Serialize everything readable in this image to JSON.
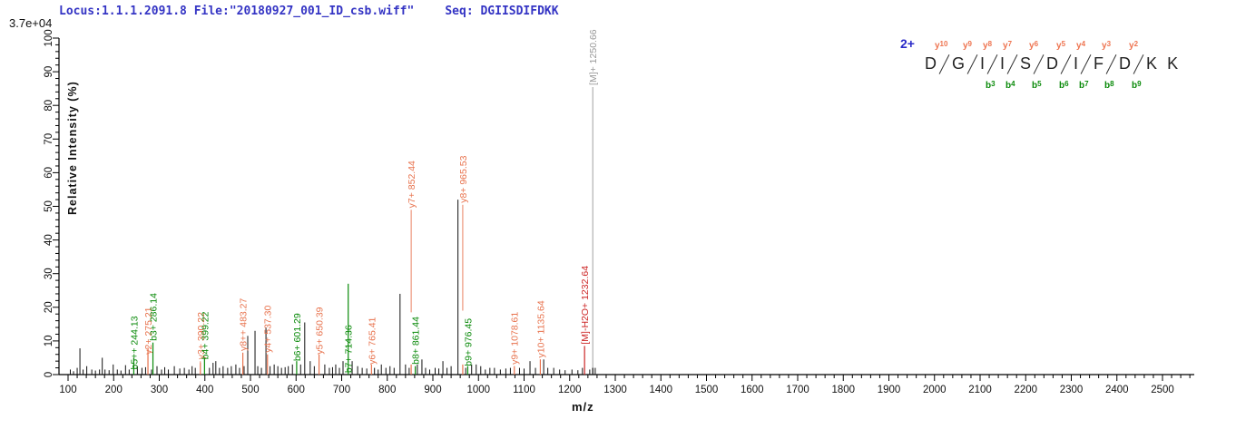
{
  "header": {
    "locus_file": "Locus:1.1.1.2091.8 File:\"20180927_001_ID_csb.wiff\"",
    "seq": "Seq: DGIISDIFDKK",
    "intensity_scale": "3.7e+04"
  },
  "peptide_panel": {
    "charge": "2+",
    "residues": [
      "D",
      "G",
      "I",
      "I",
      "S",
      "D",
      "I",
      "F",
      "D",
      "K",
      "K"
    ],
    "y_ions": [
      {
        "series": "y",
        "num": "10",
        "after": 1
      },
      {
        "series": "y",
        "num": "9",
        "after": 2
      },
      {
        "series": "y",
        "num": "8",
        "after": 3
      },
      {
        "series": "y",
        "num": "7",
        "after": 4
      },
      {
        "series": "y",
        "num": "6",
        "after": 5
      },
      {
        "series": "y",
        "num": "5",
        "after": 6
      },
      {
        "series": "y",
        "num": "4",
        "after": 7
      },
      {
        "series": "y",
        "num": "3",
        "after": 8
      },
      {
        "series": "y",
        "num": "2",
        "after": 9
      }
    ],
    "b_ions": [
      {
        "series": "b",
        "num": "3",
        "after": 3
      },
      {
        "series": "b",
        "num": "4",
        "after": 4
      },
      {
        "series": "b",
        "num": "5",
        "after": 5
      },
      {
        "series": "b",
        "num": "6",
        "after": 6
      },
      {
        "series": "b",
        "num": "7",
        "after": 7
      },
      {
        "series": "b",
        "num": "8",
        "after": 8
      },
      {
        "series": "b",
        "num": "9",
        "after": 9
      }
    ]
  },
  "chart_data": {
    "type": "bar",
    "subtype": "ms2-spectrum",
    "xlabel": "m/z",
    "ylabel": "Relative  Intensity (%)",
    "intensity_scale": "3.7e+04",
    "xlim": [
      100,
      2560
    ],
    "ylim": [
      0,
      100
    ],
    "x_tick_major": 100,
    "x_tick_minor": 20,
    "x_label_first": 100,
    "x_label_last": 2500,
    "y_tick_major": 10,
    "y_tick_minor": 2,
    "grid": false,
    "annotated_peaks": [
      {
        "mz": 244.13,
        "pct": 5,
        "label": "b5++ 244.13",
        "series": "b",
        "lab": 1.5
      },
      {
        "mz": 275.21,
        "pct": 8,
        "label": "y2+ 275.21",
        "series": "y",
        "lab": 6
      },
      {
        "mz": 286.14,
        "pct": 9.5,
        "label": "b3+ 286.14",
        "series": "b",
        "lab": 10
      },
      {
        "mz": 390.22,
        "pct": 3.5,
        "label": "y3+ 390.22",
        "series": "y",
        "lab": 4.5
      },
      {
        "mz": 399.22,
        "pct": 5,
        "label": "b4+ 399.22",
        "series": "b",
        "lab": 4.5
      },
      {
        "mz": 483.27,
        "pct": 6.5,
        "label": "y8++ 483.27",
        "series": "y",
        "lab": 7
      },
      {
        "mz": 537.3,
        "pct": 6,
        "label": "y4+ 537.30",
        "series": "y",
        "lab": 6.5
      },
      {
        "mz": 601.29,
        "pct": 4,
        "label": "b6+ 601.29",
        "series": "b",
        "lab": 4
      },
      {
        "mz": 650.39,
        "pct": 6,
        "label": "y5+ 650.39",
        "series": "y",
        "lab": 6
      },
      {
        "mz": 714.36,
        "pct": 27,
        "label": "b7+ 714.36",
        "series": "b",
        "lab": 0.5
      },
      {
        "mz": 765.41,
        "pct": 3,
        "label": "y6+ 765.41",
        "series": "y",
        "lab": 3
      },
      {
        "mz": 852.44,
        "pct": 3,
        "label": "y7+ 852.44",
        "series": "y",
        "lab": 49.5,
        "leader_end": 18.5
      },
      {
        "mz": 861.44,
        "pct": 2.5,
        "label": "b8+ 861.44",
        "series": "b",
        "lab": 3
      },
      {
        "mz": 965.53,
        "pct": 3,
        "label": "y8+ 965.53",
        "series": "y",
        "lab": 51,
        "leader_end": 19
      },
      {
        "mz": 976.45,
        "pct": 2.5,
        "label": "b9+ 976.45",
        "series": "b",
        "lab": 2.5
      },
      {
        "mz": 1078.61,
        "pct": 2.5,
        "label": "y9+ 1078.61",
        "series": "y",
        "lab": 3
      },
      {
        "mz": 1135.64,
        "pct": 4.5,
        "label": "y10+ 1135.64",
        "series": "y",
        "lab": 5
      },
      {
        "mz": 1232.64,
        "pct": 8.5,
        "label": "[M]-H2O+ 1232.64",
        "series": "loss",
        "lab": 9
      },
      {
        "mz": 1250.66,
        "pct": 2,
        "label": "[M]+ 1250.66",
        "series": "precursor",
        "lab": 86,
        "marker": true
      }
    ],
    "noise_peaks": [
      [
        105,
        1.5
      ],
      [
        112,
        1
      ],
      [
        120,
        2
      ],
      [
        126,
        7.8
      ],
      [
        133,
        1.5
      ],
      [
        141,
        2.5
      ],
      [
        152,
        1.5
      ],
      [
        160,
        1.2
      ],
      [
        169,
        1.5
      ],
      [
        175,
        5
      ],
      [
        181,
        1.5
      ],
      [
        190,
        1.3
      ],
      [
        199,
        3
      ],
      [
        208,
        1.5
      ],
      [
        216,
        1.2
      ],
      [
        226,
        2.8
      ],
      [
        234,
        1.5
      ],
      [
        252,
        2.5
      ],
      [
        262,
        2
      ],
      [
        270,
        2.2
      ],
      [
        283,
        1.5
      ],
      [
        295,
        2.5
      ],
      [
        305,
        1.5
      ],
      [
        312,
        2.2
      ],
      [
        320,
        1.5
      ],
      [
        333,
        2.5
      ],
      [
        345,
        1.8
      ],
      [
        355,
        2
      ],
      [
        365,
        1.5
      ],
      [
        372,
        2.5
      ],
      [
        379,
        2
      ],
      [
        410,
        2
      ],
      [
        418,
        3.5
      ],
      [
        424,
        4
      ],
      [
        432,
        2
      ],
      [
        440,
        2.5
      ],
      [
        450,
        2
      ],
      [
        458,
        2.5
      ],
      [
        468,
        3
      ],
      [
        476,
        2
      ],
      [
        486,
        2.5
      ],
      [
        494,
        11.5
      ],
      [
        510,
        13
      ],
      [
        516,
        2.5
      ],
      [
        524,
        2
      ],
      [
        534,
        14
      ],
      [
        543,
        2.5
      ],
      [
        552,
        3
      ],
      [
        560,
        2.5
      ],
      [
        568,
        2
      ],
      [
        576,
        2.2
      ],
      [
        583,
        2.5
      ],
      [
        592,
        3
      ],
      [
        610,
        3
      ],
      [
        619,
        15.5
      ],
      [
        631,
        4
      ],
      [
        640,
        2.5
      ],
      [
        663,
        3
      ],
      [
        673,
        2
      ],
      [
        680,
        2.2
      ],
      [
        687,
        3
      ],
      [
        695,
        2
      ],
      [
        703,
        4
      ],
      [
        723,
        4
      ],
      [
        735,
        2.5
      ],
      [
        745,
        2
      ],
      [
        755,
        1.8
      ],
      [
        772,
        2
      ],
      [
        780,
        1.5
      ],
      [
        787,
        3
      ],
      [
        797,
        2
      ],
      [
        806,
        2.5
      ],
      [
        815,
        2
      ],
      [
        828,
        24
      ],
      [
        840,
        3
      ],
      [
        848,
        2
      ],
      [
        866,
        3
      ],
      [
        876,
        4.5
      ],
      [
        884,
        2
      ],
      [
        893,
        1.5
      ],
      [
        905,
        2
      ],
      [
        913,
        1.8
      ],
      [
        922,
        4
      ],
      [
        931,
        2
      ],
      [
        940,
        2.5
      ],
      [
        955,
        52
      ],
      [
        972,
        2
      ],
      [
        985,
        3
      ],
      [
        995,
        3
      ],
      [
        1005,
        2.5
      ],
      [
        1015,
        1.5
      ],
      [
        1025,
        2
      ],
      [
        1035,
        2
      ],
      [
        1048,
        1.5
      ],
      [
        1060,
        1.8
      ],
      [
        1070,
        2
      ],
      [
        1090,
        2
      ],
      [
        1100,
        1.8
      ],
      [
        1113,
        4
      ],
      [
        1125,
        2
      ],
      [
        1143,
        4.5
      ],
      [
        1152,
        2
      ],
      [
        1165,
        2
      ],
      [
        1178,
        1.5
      ],
      [
        1190,
        1.3
      ],
      [
        1205,
        1.5
      ],
      [
        1218,
        1.3
      ],
      [
        1228,
        2
      ],
      [
        1244,
        1.5
      ],
      [
        1256,
        2
      ]
    ]
  },
  "colors": {
    "b_ion": "#0a8a0a",
    "y_ion": "#e8734e",
    "loss": "#cc2525",
    "precursor": "#9a9a9a",
    "precursor_line": "#b0b0b0",
    "peak": "#111111",
    "axis": "#000000",
    "header_blue": "#3434c4"
  }
}
